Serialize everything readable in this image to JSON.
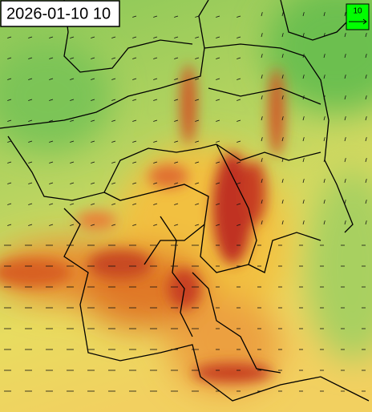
{
  "timestamp": "2026-01-10 10",
  "wind_legend": {
    "label": "10"
  }
}
